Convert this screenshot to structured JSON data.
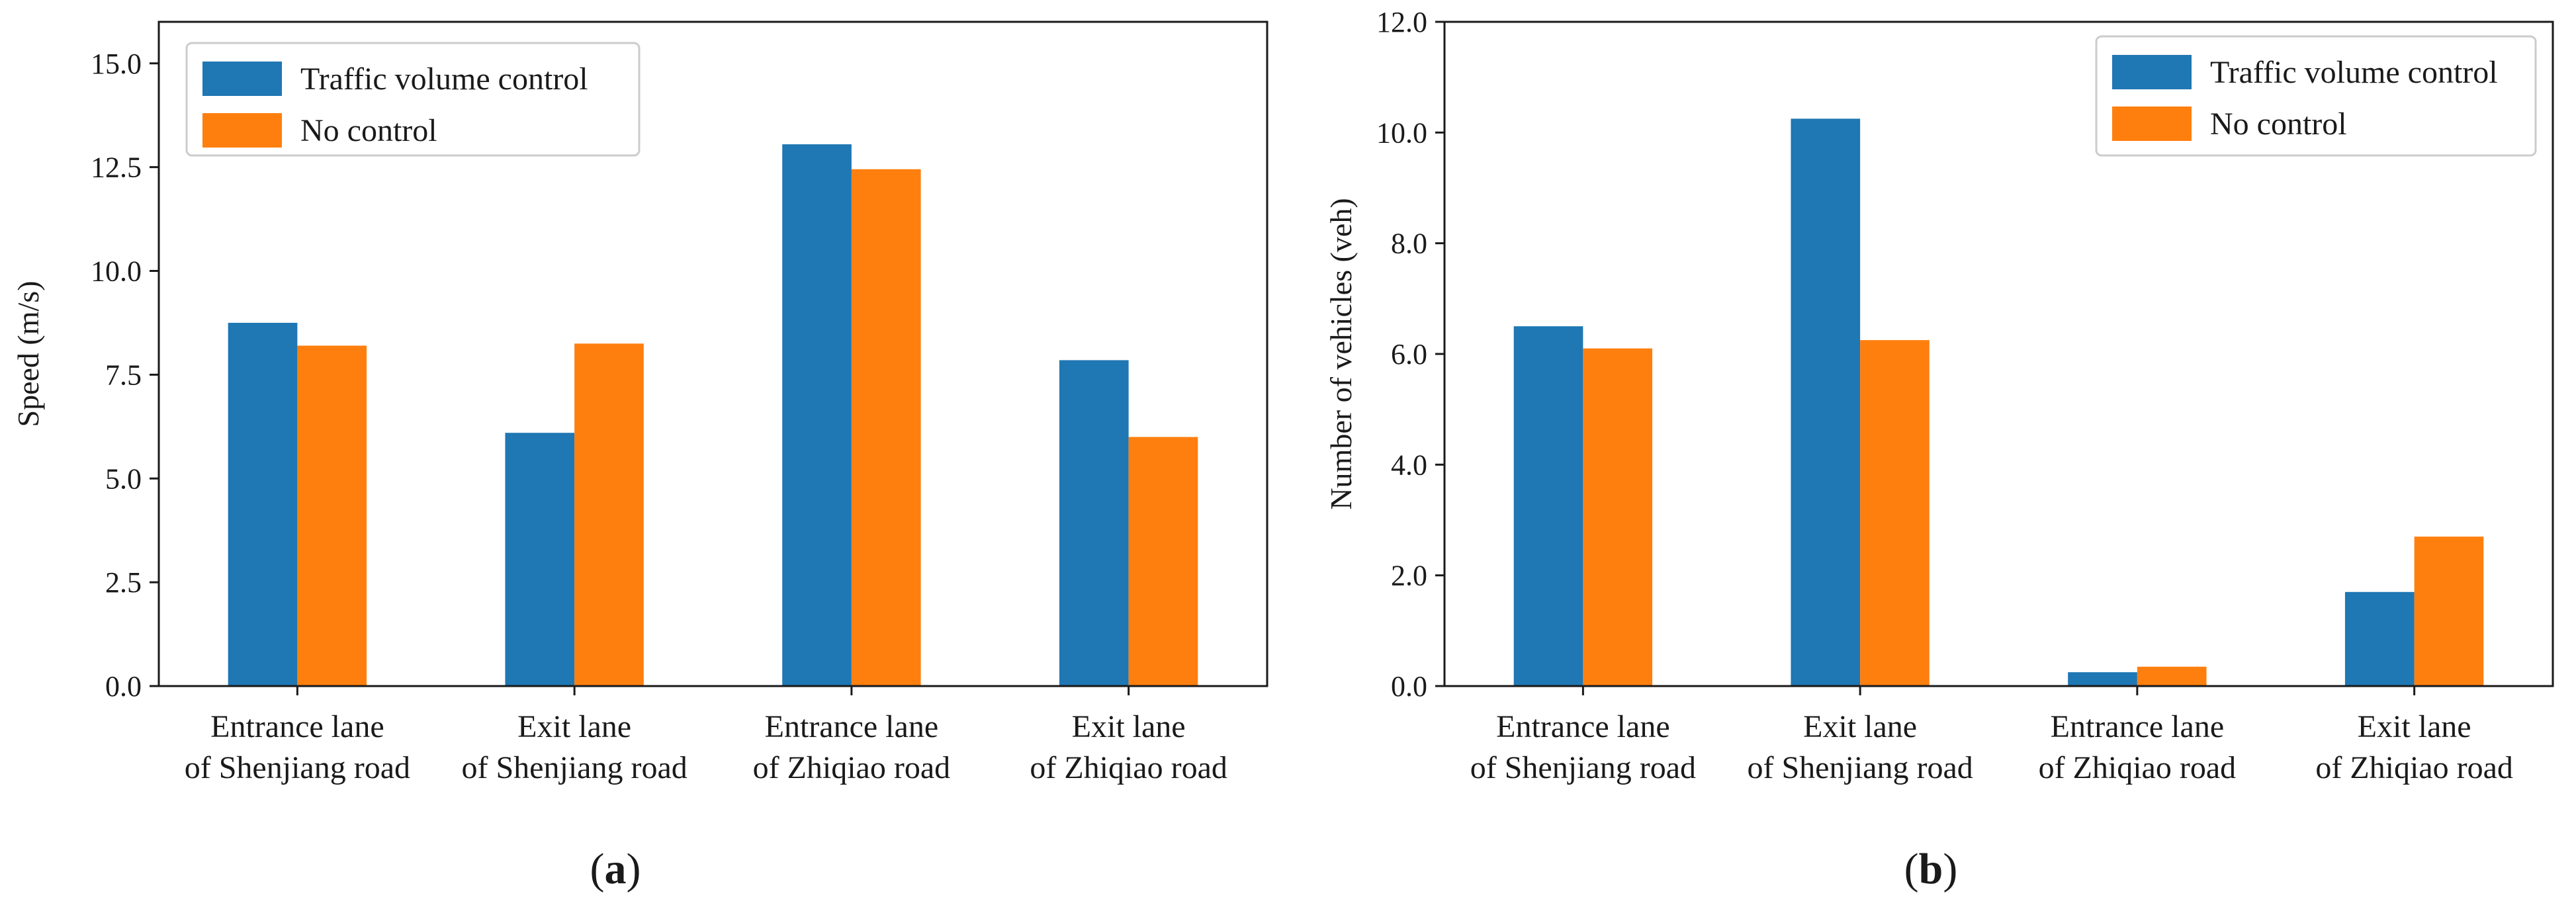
{
  "figure": {
    "panel_labels": [
      "a",
      "b"
    ]
  },
  "colors": {
    "traffic_volume_control": "#1f77b4",
    "no_control": "#ff7f0e"
  },
  "chart_data": [
    {
      "id": "a",
      "type": "bar",
      "title": "",
      "xlabel": "",
      "ylabel": "Speed (m/s)",
      "ylim": [
        0,
        16
      ],
      "yticks": [
        0.0,
        2.5,
        5.0,
        7.5,
        10.0,
        12.5,
        15.0
      ],
      "ytick_labels": [
        "0.0",
        "2.5",
        "5.0",
        "7.5",
        "10.0",
        "12.5",
        "15.0"
      ],
      "categories": [
        [
          "Entrance lane",
          "of Shenjiang road"
        ],
        [
          "Exit lane",
          "of Shenjiang road"
        ],
        [
          "Entrance lane",
          "of Zhiqiao road"
        ],
        [
          "Exit lane",
          "of Zhiqiao road"
        ]
      ],
      "legend_position": "top-left",
      "series": [
        {
          "name": "Traffic volume control",
          "color": "#1f77b4",
          "values": [
            8.75,
            6.1,
            13.05,
            7.85
          ]
        },
        {
          "name": "No control",
          "color": "#ff7f0e",
          "values": [
            8.2,
            8.25,
            12.45,
            6.0
          ]
        }
      ]
    },
    {
      "id": "b",
      "type": "bar",
      "title": "",
      "xlabel": "",
      "ylabel": "Number of vehicles (veh)",
      "ylim": [
        0,
        12
      ],
      "yticks": [
        0,
        2,
        4,
        6,
        8,
        10,
        12
      ],
      "ytick_labels": [
        "0.0",
        "2.0",
        "4.0",
        "6.0",
        "8.0",
        "10.0",
        "12.0"
      ],
      "categories": [
        [
          "Entrance lane",
          "of Shenjiang road"
        ],
        [
          "Exit lane",
          "of Shenjiang road"
        ],
        [
          "Entrance lane",
          "of Zhiqiao road"
        ],
        [
          "Exit lane",
          "of Zhiqiao road"
        ]
      ],
      "legend_position": "top-right",
      "series": [
        {
          "name": "Traffic volume control",
          "color": "#1f77b4",
          "values": [
            6.5,
            10.25,
            0.25,
            1.7
          ]
        },
        {
          "name": "No control",
          "color": "#ff7f0e",
          "values": [
            6.1,
            6.25,
            0.35,
            2.7
          ]
        }
      ]
    }
  ]
}
